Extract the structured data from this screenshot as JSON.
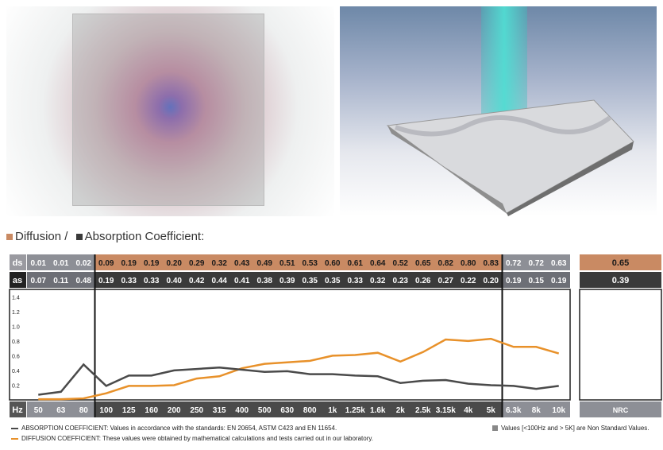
{
  "legend": {
    "diffusion_label": "Diffusion /",
    "absorption_label": "Absorption Coefficient:",
    "diffusion_color": "#c98a63",
    "absorption_color": "#3a3a3a"
  },
  "chart_data": {
    "type": "line",
    "row_labels": [
      "ds",
      "as",
      "Hz"
    ],
    "categories": [
      "50",
      "63",
      "80",
      "100",
      "125",
      "160",
      "200",
      "250",
      "315",
      "400",
      "500",
      "630",
      "800",
      "1k",
      "1.25k",
      "1.6k",
      "2k",
      "2.5k",
      "3.15k",
      "4k",
      "5k",
      "6.3k",
      "8k",
      "10k"
    ],
    "series": [
      {
        "key": "diffusion",
        "values": [
          0.01,
          0.01,
          0.02,
          0.09,
          0.19,
          0.19,
          0.2,
          0.29,
          0.32,
          0.43,
          0.49,
          0.51,
          0.53,
          0.6,
          0.61,
          0.64,
          0.52,
          0.65,
          0.82,
          0.8,
          0.83,
          0.72,
          0.72,
          0.63
        ]
      },
      {
        "key": "absorption",
        "values": [
          0.07,
          0.11,
          0.48,
          0.19,
          0.33,
          0.33,
          0.4,
          0.42,
          0.44,
          0.41,
          0.38,
          0.39,
          0.35,
          0.35,
          0.33,
          0.32,
          0.23,
          0.26,
          0.27,
          0.22,
          0.2,
          0.19,
          0.15,
          0.19
        ]
      }
    ],
    "ytick_labels": [
      "1.4",
      "1.2",
      "1.0",
      "0.8",
      "0.6",
      "0.4",
      "0.2"
    ],
    "ylim": [
      0,
      1.5
    ],
    "nrc_label": "NRC",
    "nrc_diffusion": "0.65",
    "nrc_absorption": "0.39",
    "nonstandard_ranges": "<100Hz and >5K",
    "line_colors": {
      "diffusion": "#e8912a",
      "absorption": "#4a4a4a"
    }
  },
  "notes": {
    "absorption": "ABSORPTION COEFFICIENT: Values in accordance with the standards: EN 20654, ASTM C423 and EN 11654.",
    "diffusion": "DIFFUSION COEFFICIENT: These values were obtained by mathematical calculations and tests carried out in our laboratory.",
    "nonstandard": "Values [<100Hz and > 5K] are Non Standard Values."
  }
}
